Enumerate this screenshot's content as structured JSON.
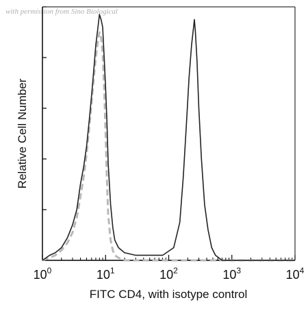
{
  "watermark": "with permission from Sino Biological",
  "chart_data": {
    "type": "line",
    "title": "",
    "xlabel": "FITC CD4, with isotype control",
    "ylabel": "Relative Cell Number",
    "x_scale": "log",
    "xlim": [
      1,
      10000
    ],
    "ylim": [
      0,
      100
    ],
    "x_ticks": [
      {
        "base": "10",
        "exp": "0",
        "value": 1
      },
      {
        "base": "10",
        "exp": "1",
        "value": 10
      },
      {
        "base": "10",
        "exp": "2",
        "value": 100
      },
      {
        "base": "10",
        "exp": "3",
        "value": 1000
      },
      {
        "base": "10",
        "exp": "4",
        "value": 10000
      }
    ],
    "series": [
      {
        "style": "solid",
        "color": "#222222",
        "x": [
          1.0,
          1.3,
          1.6,
          2.0,
          2.5,
          3.0,
          3.5,
          4.0,
          4.5,
          5.0,
          5.5,
          6.0,
          6.5,
          7.0,
          7.5,
          8.0,
          8.5,
          9.0,
          9.5,
          10.0,
          10.5,
          11.0,
          12.0,
          13.0,
          14.0,
          16.0,
          20.0,
          30.0,
          50.0,
          80.0,
          120.0,
          150.0,
          170.0,
          190.0,
          210.0,
          230.0,
          245.0,
          255.0,
          265.0,
          280.0,
          300.0,
          330.0,
          370.0,
          420.0,
          480.0,
          550.0,
          700.0,
          1000.0,
          10000.0
        ],
        "y": [
          0,
          2,
          3,
          5,
          9,
          14,
          20,
          30,
          37,
          45,
          55,
          65,
          75,
          85,
          91,
          97,
          95,
          92,
          80,
          68,
          55,
          38,
          22,
          13,
          8,
          5,
          3,
          2,
          2,
          2,
          5,
          15,
          33,
          53,
          72,
          85,
          91,
          95,
          90,
          79,
          60,
          40,
          22,
          12,
          5,
          2,
          0,
          0,
          0
        ]
      },
      {
        "style": "dashed",
        "color": "#b8b8b8",
        "x": [
          1.0,
          1.3,
          1.6,
          2.0,
          2.5,
          3.0,
          3.5,
          4.0,
          4.5,
          5.0,
          5.5,
          6.0,
          6.5,
          7.0,
          7.5,
          8.0,
          8.5,
          9.0,
          9.5,
          10.0,
          10.5,
          11.0,
          12.0,
          13.0,
          14.0,
          16.0,
          20.0,
          30.0,
          10000.0
        ],
        "y": [
          0,
          1,
          2,
          4,
          7,
          11,
          17,
          25,
          33,
          42,
          52,
          62,
          72,
          80,
          86,
          90,
          88,
          82,
          68,
          50,
          32,
          18,
          8,
          4,
          2,
          1,
          0,
          0,
          0
        ]
      }
    ],
    "grid": false,
    "legend": "none"
  }
}
